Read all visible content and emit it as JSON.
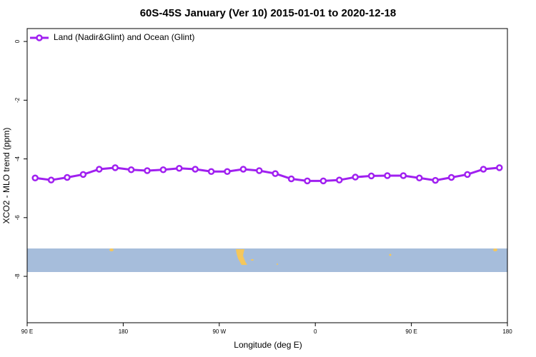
{
  "chart_data": {
    "type": "line",
    "title": "60S-45S January (Ver 10)   2015-01-01 to 2020-12-18",
    "x_label": "Longitude (deg E)",
    "y_label": "XCO2 - MLO trend (ppm)",
    "x": [
      97.5,
      112.5,
      127.5,
      142.5,
      157.5,
      172.5,
      187.5,
      202.5,
      217.5,
      232.5,
      247.5,
      262.5,
      277.5,
      292.5,
      307.5,
      322.5,
      337.5,
      352.5,
      367.5,
      382.5,
      397.5,
      412.5,
      427.5,
      442.5,
      457.5,
      472.5,
      487.5,
      502.5,
      517.5,
      532.5
    ],
    "series": [
      {
        "name": "Land (Nadir&Glint) and Ocean (Glint)",
        "color": "#a020f0",
        "values": [
          -4.65,
          -4.72,
          -4.63,
          -4.53,
          -4.35,
          -4.3,
          -4.37,
          -4.4,
          -4.37,
          -4.32,
          -4.35,
          -4.43,
          -4.43,
          -4.35,
          -4.4,
          -4.5,
          -4.68,
          -4.75,
          -4.75,
          -4.72,
          -4.62,
          -4.58,
          -4.57,
          -4.57,
          -4.65,
          -4.73,
          -4.63,
          -4.53,
          -4.35,
          -4.3
        ]
      }
    ],
    "xlim": [
      90,
      540
    ],
    "xticks": [
      {
        "value": 90,
        "label": "90 E"
      },
      {
        "value": 180,
        "label": "180"
      },
      {
        "value": 270,
        "label": "90 W"
      },
      {
        "value": 360,
        "label": "0"
      },
      {
        "value": 450,
        "label": "90 E"
      },
      {
        "value": 540,
        "label": "180"
      }
    ],
    "ylim": [
      -9.58,
      0.44
    ],
    "yticks": [
      0,
      -2,
      -4,
      -6,
      -8
    ],
    "legend": "top-left"
  }
}
